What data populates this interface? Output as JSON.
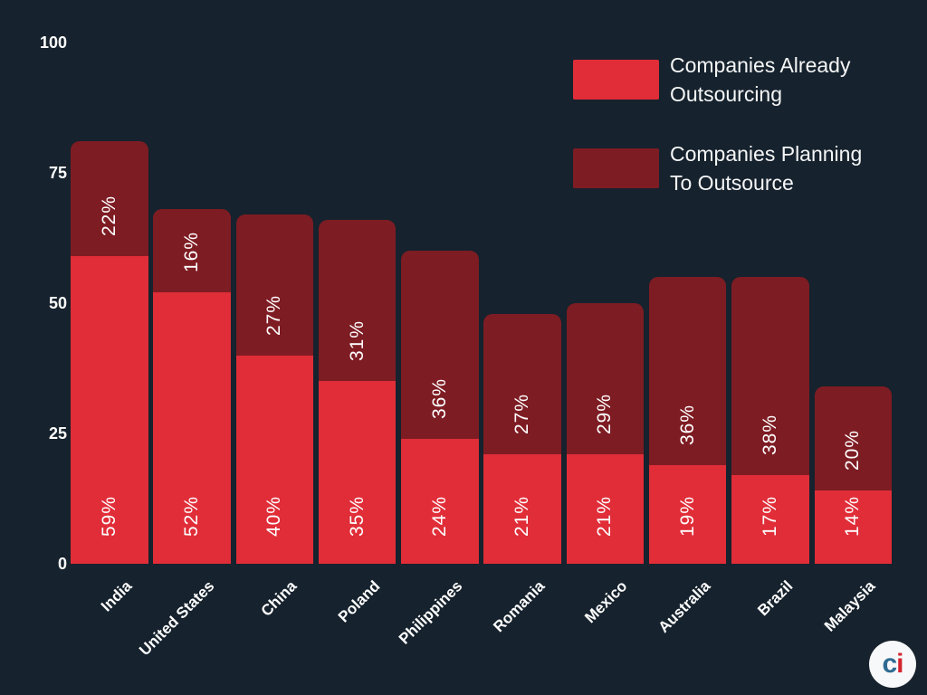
{
  "chart_data": {
    "type": "bar",
    "stacked": true,
    "categories": [
      "India",
      "United States",
      "China",
      "Poland",
      "Philippines",
      "Romania",
      "Mexico",
      "Australia",
      "Brazil",
      "Malaysia"
    ],
    "series": [
      {
        "name": "Companies Already Outsourcing",
        "legend_lines": [
          "Companies Already",
          "Outsourcing"
        ],
        "color": "#e02d38",
        "values": [
          59,
          52,
          40,
          35,
          24,
          21,
          21,
          19,
          17,
          14
        ]
      },
      {
        "name": "Companies Planning To Outsource",
        "legend_lines": [
          "Companies Planning",
          "To Outsource"
        ],
        "color": "#7e1c23",
        "values": [
          22,
          16,
          27,
          31,
          36,
          27,
          29,
          36,
          38,
          20
        ]
      }
    ],
    "value_suffix": "%",
    "ylim": [
      0,
      100
    ],
    "yticks": [
      0,
      25,
      50,
      75,
      100
    ],
    "grid": false,
    "legend_position": "top-right"
  },
  "colors": {
    "background": "#16222d",
    "text": "#ffffff"
  },
  "logo": {
    "letters": [
      {
        "char": "c",
        "color": "#2d6b92"
      },
      {
        "char": "i",
        "color": "#d4242f"
      }
    ]
  }
}
